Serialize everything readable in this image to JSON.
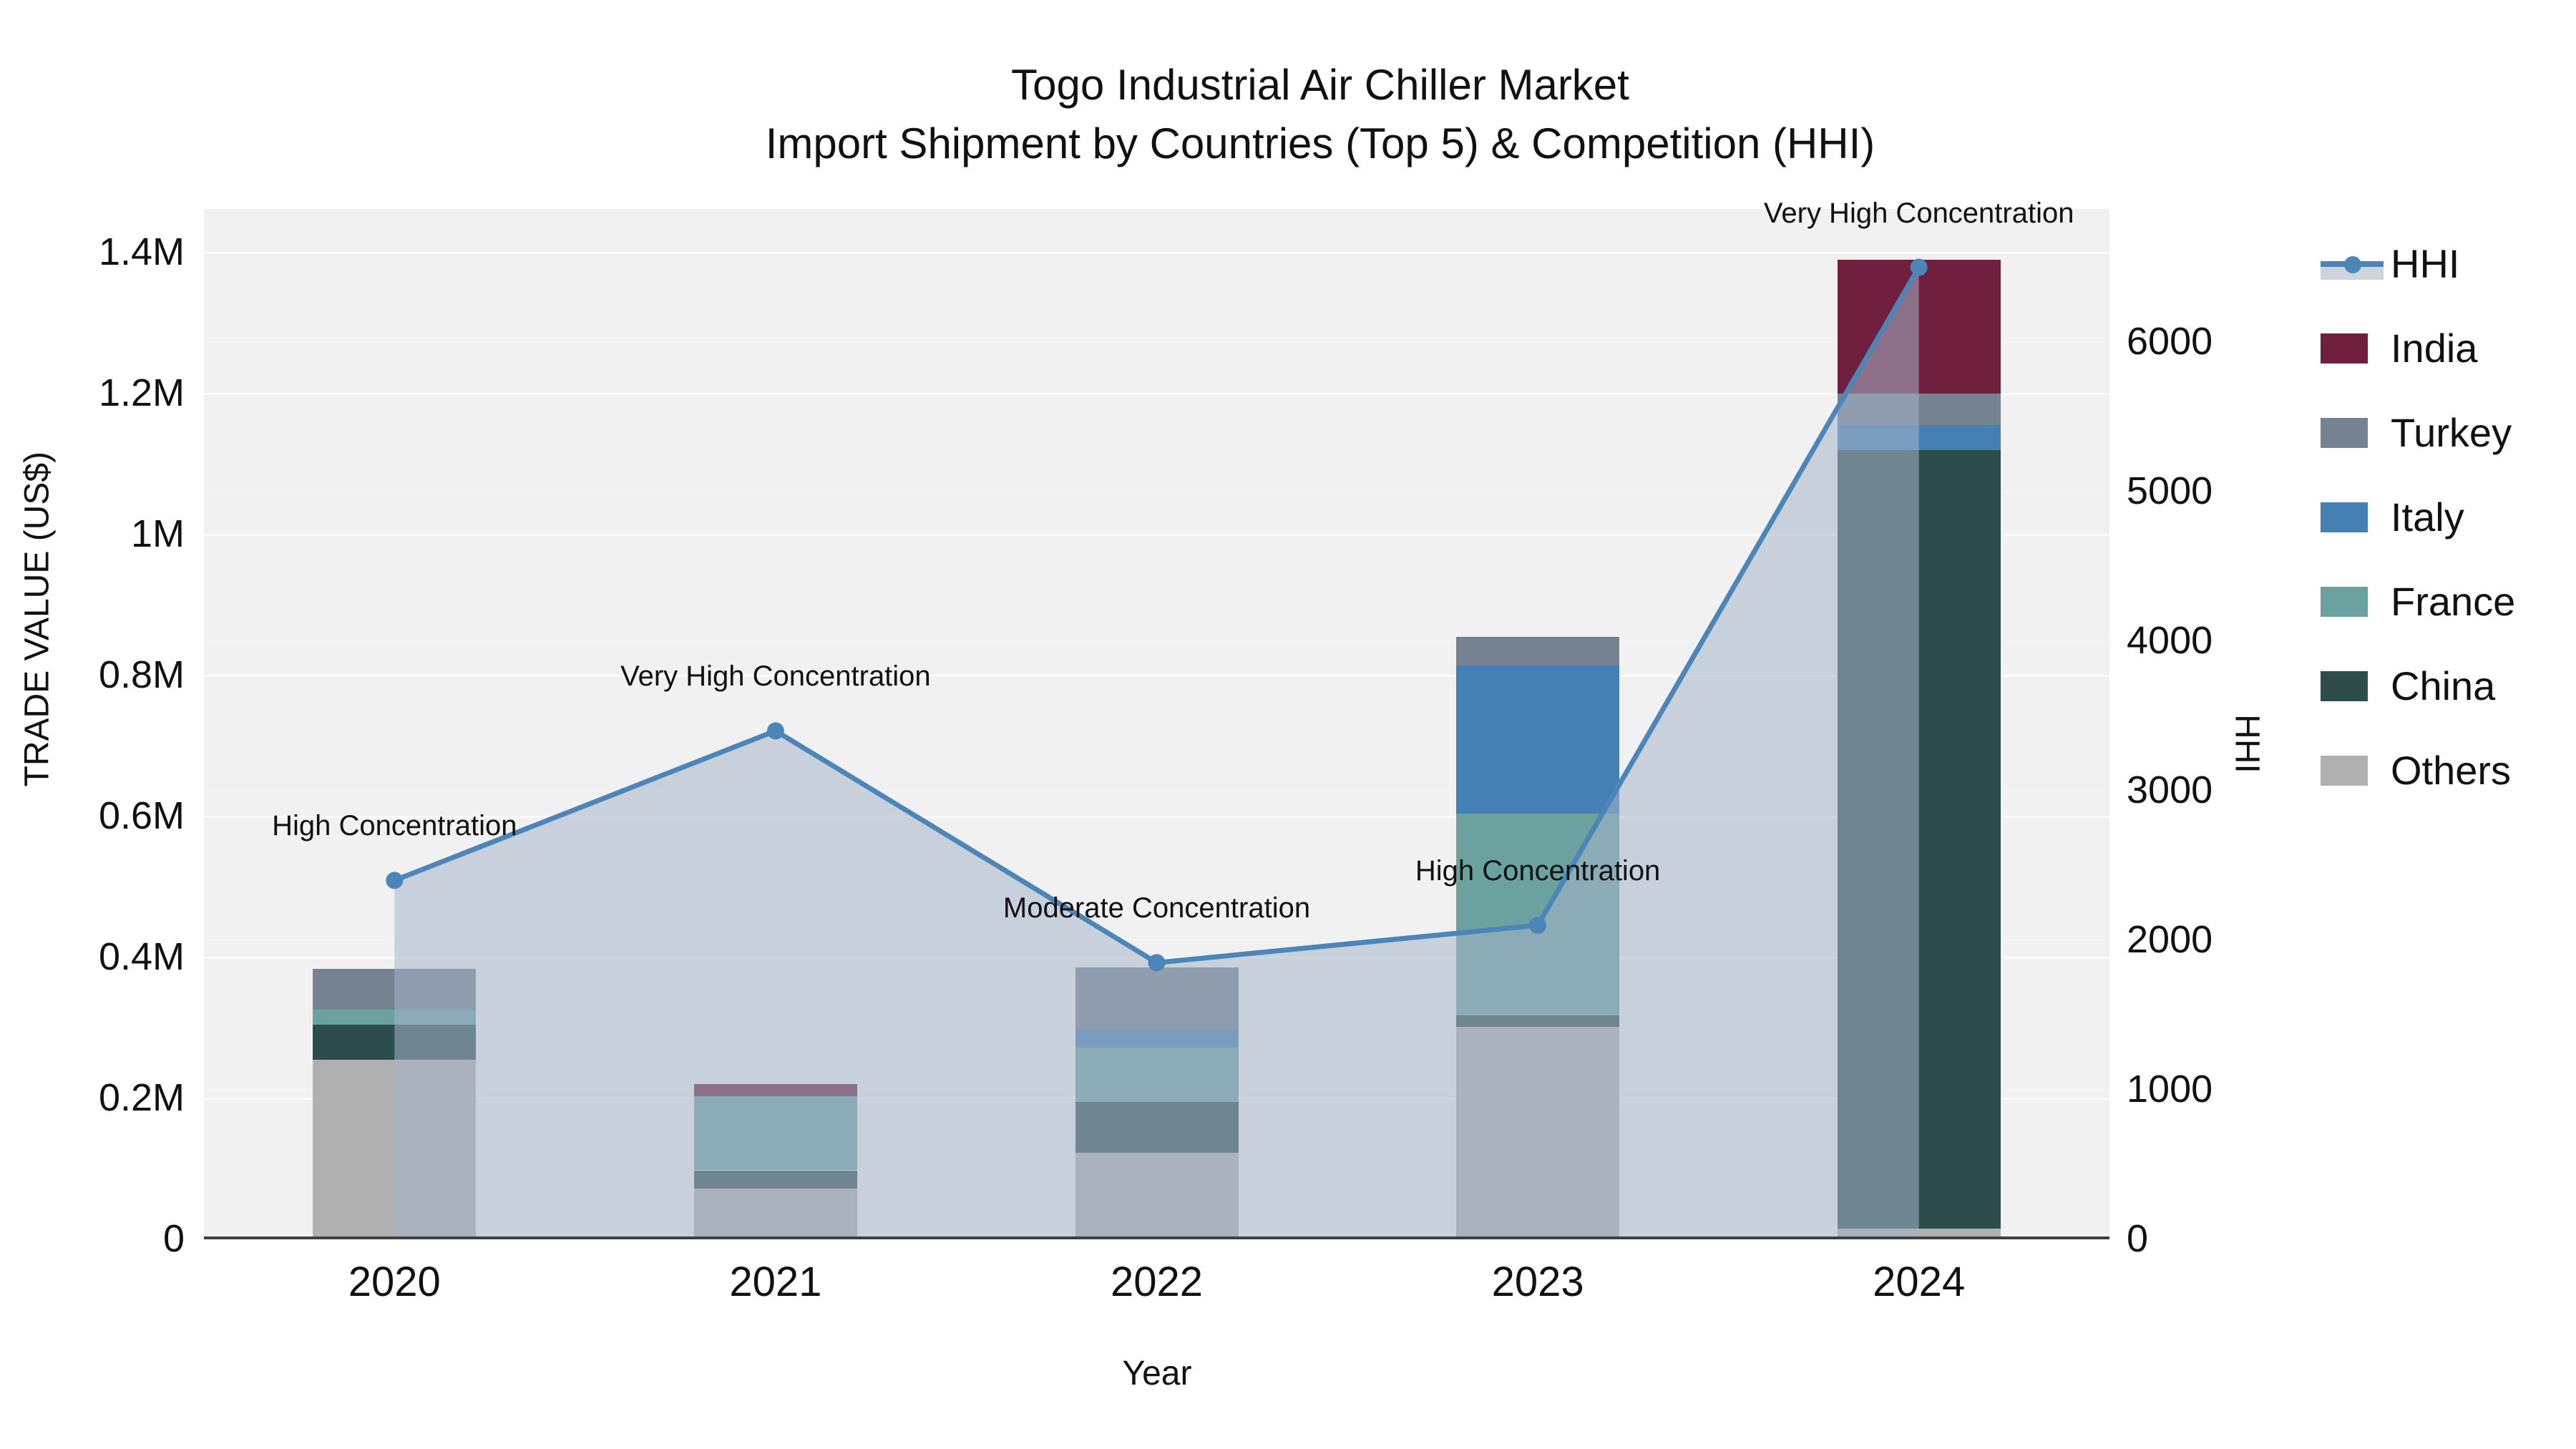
{
  "title": {
    "line1": "Togo Industrial Air Chiller Market",
    "line2": "Import Shipment by Countries (Top 5) & Competition (HHI)"
  },
  "chart_data": {
    "type": "bar+line",
    "subtype": "stacked-bars-with-secondary-axis-line-and-area-fill",
    "categories": [
      "2020",
      "2021",
      "2022",
      "2023",
      "2024"
    ],
    "xlabel": "Year",
    "stack_order": [
      "Others",
      "China",
      "France",
      "Italy",
      "Turkey",
      "India"
    ],
    "series": [
      {
        "name": "Others",
        "color": "#b0b0b0",
        "values": [
          255000,
          72000,
          123000,
          302000,
          15000
        ]
      },
      {
        "name": "China",
        "color": "#2d4d4d",
        "values": [
          50000,
          26000,
          72000,
          16000,
          1105000
        ]
      },
      {
        "name": "France",
        "color": "#6ba29f",
        "values": [
          21000,
          105000,
          77000,
          286000,
          0
        ]
      },
      {
        "name": "Italy",
        "color": "#4580b4",
        "values": [
          0,
          0,
          27000,
          210000,
          35000
        ]
      },
      {
        "name": "Turkey",
        "color": "#75828f",
        "values": [
          58000,
          0,
          87000,
          41000,
          45000
        ]
      },
      {
        "name": "India",
        "color": "#701f3e",
        "values": [
          0,
          17000,
          0,
          0,
          190000
        ]
      }
    ],
    "totals": [
      384000,
      220000,
      386000,
      855000,
      1390000
    ],
    "hhi": {
      "name": "HHI",
      "line_color": "#4c86b8",
      "fill_color": "rgba(166,180,200,0.55)",
      "values": [
        2400,
        3400,
        1850,
        2100,
        6500
      ]
    },
    "annotations": [
      {
        "year": "2020",
        "label": "High Concentration"
      },
      {
        "year": "2021",
        "label": "Very High Concentration"
      },
      {
        "year": "2022",
        "label": "Moderate Concentration"
      },
      {
        "year": "2023",
        "label": "High Concentration"
      },
      {
        "year": "2024",
        "label": "Very High Concentration"
      }
    ],
    "axes": {
      "left": {
        "label": "TRADE VALUE (US$)",
        "max": 1462000,
        "ticks": [
          {
            "v": 0,
            "label": "0"
          },
          {
            "v": 200000,
            "label": "0.2M"
          },
          {
            "v": 400000,
            "label": "0.4M"
          },
          {
            "v": 600000,
            "label": "0.6M"
          },
          {
            "v": 800000,
            "label": "0.8M"
          },
          {
            "v": 1000000,
            "label": "1M"
          },
          {
            "v": 1200000,
            "label": "1.2M"
          },
          {
            "v": 1400000,
            "label": "1.4M"
          }
        ]
      },
      "right": {
        "label": "HHI",
        "max": 6890,
        "ticks": [
          {
            "v": 0,
            "label": "0"
          },
          {
            "v": 1000,
            "label": "1000"
          },
          {
            "v": 2000,
            "label": "2000"
          },
          {
            "v": 3000,
            "label": "3000"
          },
          {
            "v": 4000,
            "label": "4000"
          },
          {
            "v": 5000,
            "label": "5000"
          },
          {
            "v": 6000,
            "label": "6000"
          }
        ]
      }
    },
    "legend": {
      "order": [
        "HHI",
        "India",
        "Turkey",
        "Italy",
        "France",
        "China",
        "Others"
      ],
      "position": "right-top"
    },
    "style": {
      "plot_bg": "#f1f1f2",
      "page_bg": "#ffffff",
      "axis_line_color": "#3f3f3f",
      "grid_on": true
    }
  }
}
